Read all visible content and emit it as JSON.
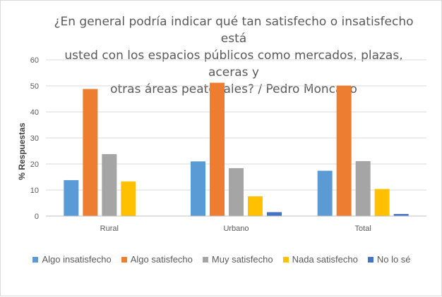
{
  "chart_data": {
    "type": "bar",
    "title": "¿En general podría indicar qué tan satisfecho o insatisfecho está usted con los espacios públicos como mercados, plazas, aceras y otras áreas peatonales? / Pedro Moncayo",
    "title_lines": [
      "¿En general podría indicar qué tan satisfecho o insatisfecho está",
      "usted con los espacios públicos como mercados, plazas, aceras y",
      "otras áreas peatonales? / Pedro Moncayo"
    ],
    "ylabel": "% Respuestas",
    "xlabel": "",
    "ylim": [
      0,
      60
    ],
    "yticks": [
      0,
      10,
      20,
      30,
      40,
      50,
      60
    ],
    "grid": true,
    "legend_position": "bottom",
    "categories": [
      "Rural",
      "Urbano",
      "Total"
    ],
    "series": [
      {
        "name": "Algo insatisfecho",
        "color": "#5B9BD5",
        "values": [
          13.8,
          21.0,
          17.4
        ]
      },
      {
        "name": "Algo satisfecho",
        "color": "#ED7D31",
        "values": [
          48.8,
          51.2,
          50.1
        ]
      },
      {
        "name": "Muy satisfecho",
        "color": "#A5A5A5",
        "values": [
          23.8,
          18.4,
          21.1
        ]
      },
      {
        "name": "Nada satisfecho",
        "color": "#FFC000",
        "values": [
          13.3,
          7.6,
          10.4
        ]
      },
      {
        "name": "No lo sé",
        "color": "#4472C4",
        "values": [
          0.0,
          1.5,
          0.8
        ]
      }
    ]
  }
}
